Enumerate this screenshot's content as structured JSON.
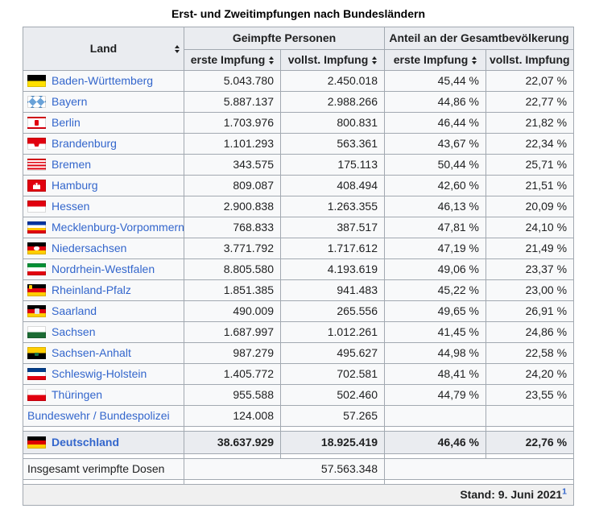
{
  "title": "Erst- und Zweitimpfungen nach Bundesländern",
  "colors": {
    "link": "#3366cc",
    "border": "#a2a9b1",
    "header_bg": "#eaecf0",
    "body_bg": "#f8f9fa",
    "footer_bg": "#f0f0f0"
  },
  "table": {
    "header": {
      "land": "Land",
      "group1": "Geimpfte Personen",
      "group2": "Anteil an der Gesamtbevölkerung",
      "sub": [
        "erste Impfung",
        "vollst. Impfung",
        "erste Impfung",
        "vollst. Impfung"
      ]
    },
    "rows": [
      {
        "land": "Baden-Württemberg",
        "flag": "bw",
        "erste": "5.043.780",
        "vollst": "2.450.018",
        "anteil_erste": "45,44 %",
        "anteil_vollst": "22,07 %"
      },
      {
        "land": "Bayern",
        "flag": "by",
        "erste": "5.887.137",
        "vollst": "2.988.266",
        "anteil_erste": "44,86 %",
        "anteil_vollst": "22,77 %"
      },
      {
        "land": "Berlin",
        "flag": "be",
        "erste": "1.703.976",
        "vollst": "800.831",
        "anteil_erste": "46,44 %",
        "anteil_vollst": "21,82 %"
      },
      {
        "land": "Brandenburg",
        "flag": "bb",
        "erste": "1.101.293",
        "vollst": "563.361",
        "anteil_erste": "43,67 %",
        "anteil_vollst": "22,34 %"
      },
      {
        "land": "Bremen",
        "flag": "hb",
        "erste": "343.575",
        "vollst": "175.113",
        "anteil_erste": "50,44 %",
        "anteil_vollst": "25,71 %"
      },
      {
        "land": "Hamburg",
        "flag": "hh",
        "erste": "809.087",
        "vollst": "408.494",
        "anteil_erste": "42,60 %",
        "anteil_vollst": "21,51 %"
      },
      {
        "land": "Hessen",
        "flag": "he",
        "erste": "2.900.838",
        "vollst": "1.263.355",
        "anteil_erste": "46,13 %",
        "anteil_vollst": "20,09 %"
      },
      {
        "land": "Mecklenburg-Vorpommern",
        "flag": "mv",
        "erste": "768.833",
        "vollst": "387.517",
        "anteil_erste": "47,81 %",
        "anteil_vollst": "24,10 %"
      },
      {
        "land": "Niedersachsen",
        "flag": "ni",
        "erste": "3.771.792",
        "vollst": "1.717.612",
        "anteil_erste": "47,19 %",
        "anteil_vollst": "21,49 %"
      },
      {
        "land": "Nordrhein-Westfalen",
        "flag": "nw",
        "erste": "8.805.580",
        "vollst": "4.193.619",
        "anteil_erste": "49,06 %",
        "anteil_vollst": "23,37 %"
      },
      {
        "land": "Rheinland-Pfalz",
        "flag": "rp",
        "erste": "1.851.385",
        "vollst": "941.483",
        "anteil_erste": "45,22 %",
        "anteil_vollst": "23,00 %"
      },
      {
        "land": "Saarland",
        "flag": "sl",
        "erste": "490.009",
        "vollst": "265.556",
        "anteil_erste": "49,65 %",
        "anteil_vollst": "26,91 %"
      },
      {
        "land": "Sachsen",
        "flag": "sn",
        "erste": "1.687.997",
        "vollst": "1.012.261",
        "anteil_erste": "41,45 %",
        "anteil_vollst": "24,86 %"
      },
      {
        "land": "Sachsen-Anhalt",
        "flag": "st",
        "erste": "987.279",
        "vollst": "495.627",
        "anteil_erste": "44,98 %",
        "anteil_vollst": "22,58 %"
      },
      {
        "land": "Schleswig-Holstein",
        "flag": "sh",
        "erste": "1.405.772",
        "vollst": "702.581",
        "anteil_erste": "48,41 %",
        "anteil_vollst": "24,20 %"
      },
      {
        "land": "Thüringen",
        "flag": "th",
        "erste": "955.588",
        "vollst": "502.460",
        "anteil_erste": "44,79 %",
        "anteil_vollst": "23,55 %"
      },
      {
        "land": "Bundeswehr / Bundespolizei",
        "flag": "",
        "erste": "124.008",
        "vollst": "57.265",
        "anteil_erste": "",
        "anteil_vollst": ""
      }
    ],
    "total_row": {
      "land": "Deutschland",
      "flag": "de",
      "erste": "38.637.929",
      "vollst": "18.925.419",
      "anteil_erste": "46,46 %",
      "anteil_vollst": "22,76 %"
    },
    "doses_row": {
      "label": "Insgesamt verimpfte Dosen",
      "value": "57.563.348"
    },
    "footer": {
      "text": "Stand: 9. Juni 2021",
      "ref": "1"
    }
  }
}
